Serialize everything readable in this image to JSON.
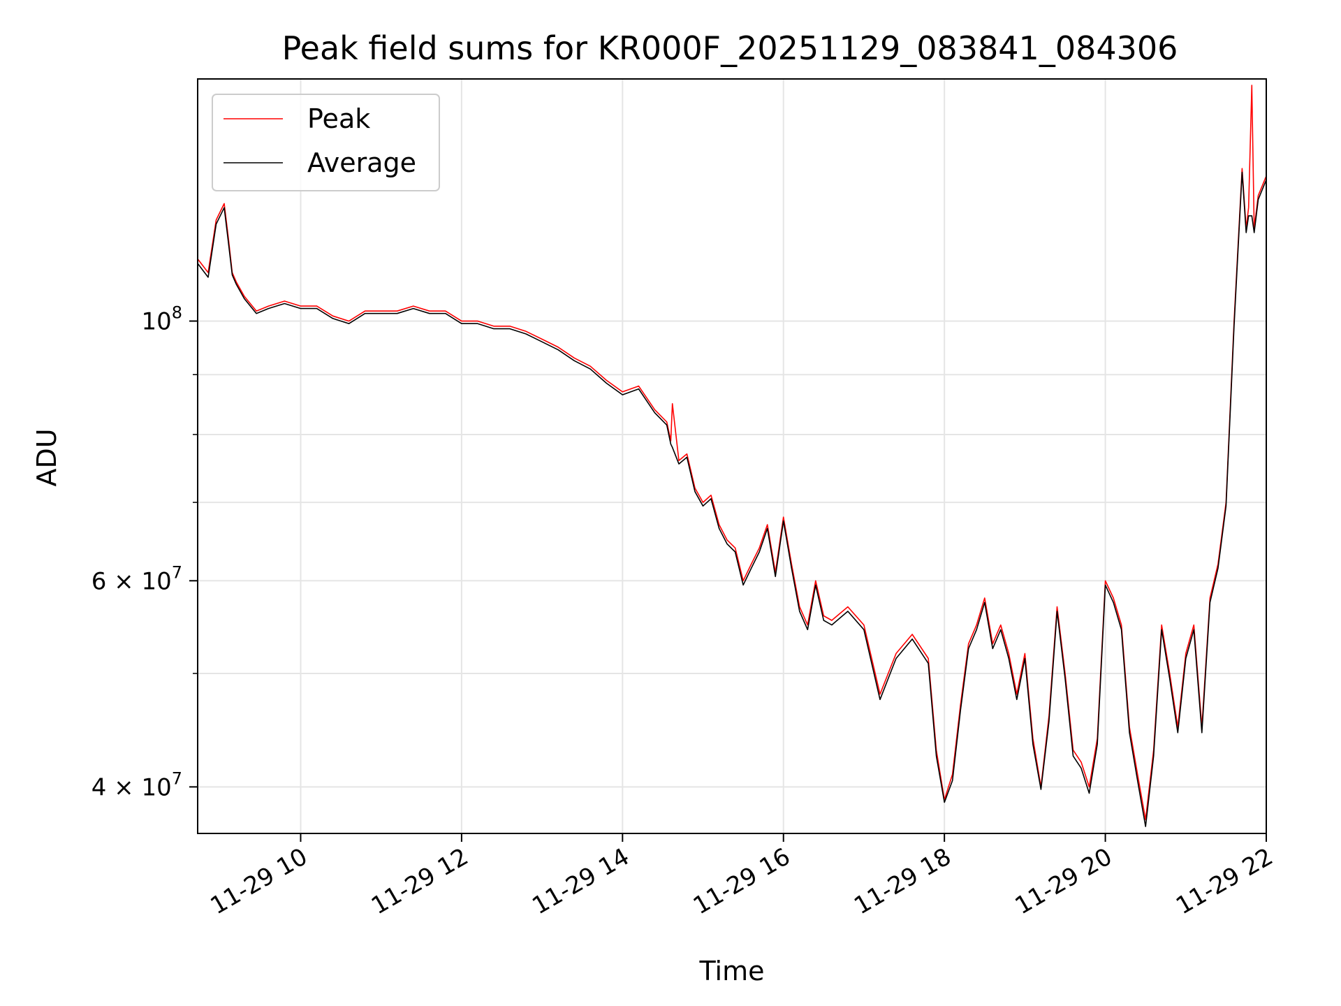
{
  "chart_data": {
    "type": "line",
    "title": "Peak field sums for KR000F_20251129_083841_084306",
    "xlabel": "Time",
    "ylabel": "ADU",
    "yscale": "log",
    "xlim_hours": [
      8.72,
      22.0
    ],
    "ylim": [
      36500000,
      161000000
    ],
    "grid": true,
    "legend_position": "top-left",
    "x_ticks": [
      {
        "value": 10,
        "label": "11-29 10"
      },
      {
        "value": 12,
        "label": "11-29 12"
      },
      {
        "value": 14,
        "label": "11-29 14"
      },
      {
        "value": 16,
        "label": "11-29 16"
      },
      {
        "value": 18,
        "label": "11-29 18"
      },
      {
        "value": 20,
        "label": "11-29 20"
      },
      {
        "value": 22,
        "label": "11-29 22"
      }
    ],
    "y_major_ticks": [
      {
        "value": 100000000,
        "base": "10",
        "exp": "8",
        "mult": ""
      },
      {
        "value": 60000000,
        "base": "10",
        "exp": "7",
        "mult": "6 × "
      },
      {
        "value": 40000000,
        "base": "10",
        "exp": "7",
        "mult": "4 × "
      }
    ],
    "y_minor_ticks": [
      90000000,
      80000000,
      70000000,
      50000000
    ],
    "series": [
      {
        "name": "Peak",
        "color": "#ff0000",
        "x": [
          8.72,
          8.85,
          8.95,
          9.05,
          9.1,
          9.15,
          9.2,
          9.3,
          9.45,
          9.6,
          9.8,
          10.0,
          10.2,
          10.4,
          10.6,
          10.8,
          11.0,
          11.2,
          11.4,
          11.6,
          11.8,
          12.0,
          12.2,
          12.4,
          12.6,
          12.8,
          13.0,
          13.2,
          13.4,
          13.6,
          13.8,
          14.0,
          14.2,
          14.4,
          14.55,
          14.6,
          14.62,
          14.7,
          14.8,
          14.9,
          15.0,
          15.1,
          15.2,
          15.3,
          15.4,
          15.5,
          15.6,
          15.7,
          15.8,
          15.9,
          16.0,
          16.1,
          16.2,
          16.3,
          16.4,
          16.5,
          16.6,
          16.8,
          17.0,
          17.2,
          17.4,
          17.6,
          17.8,
          17.9,
          18.0,
          18.1,
          18.2,
          18.3,
          18.4,
          18.5,
          18.6,
          18.7,
          18.8,
          18.9,
          19.0,
          19.1,
          19.2,
          19.3,
          19.4,
          19.5,
          19.6,
          19.7,
          19.8,
          19.9,
          20.0,
          20.1,
          20.2,
          20.3,
          20.4,
          20.5,
          20.6,
          20.7,
          20.8,
          20.9,
          21.0,
          21.1,
          21.2,
          21.3,
          21.4,
          21.5,
          21.6,
          21.7,
          21.75,
          21.78,
          21.82,
          21.85,
          21.9,
          22.0
        ],
        "values": [
          113000000,
          110000000,
          122000000,
          126000000,
          118000000,
          110000000,
          108000000,
          105000000,
          102000000,
          103000000,
          104000000,
          103000000,
          103000000,
          101000000,
          100000000,
          102000000,
          102000000,
          102000000,
          103000000,
          102000000,
          102000000,
          100000000,
          100000000,
          99000000,
          99000000,
          98000000,
          96500000,
          95000000,
          93000000,
          91500000,
          89000000,
          87000000,
          88000000,
          84000000,
          82000000,
          79000000,
          85000000,
          76000000,
          77000000,
          72000000,
          70000000,
          71000000,
          67000000,
          65000000,
          64000000,
          60000000,
          62000000,
          64000000,
          67000000,
          61000000,
          68000000,
          62000000,
          57000000,
          55000000,
          60000000,
          56000000,
          55500000,
          57000000,
          55000000,
          48000000,
          52000000,
          54000000,
          51500000,
          43000000,
          39000000,
          41000000,
          47000000,
          53000000,
          55000000,
          58000000,
          53000000,
          55000000,
          52000000,
          48000000,
          52000000,
          44000000,
          40000000,
          46000000,
          57000000,
          50000000,
          43000000,
          42000000,
          40000000,
          44000000,
          60000000,
          58000000,
          55000000,
          45000000,
          41000000,
          37500000,
          43000000,
          55000000,
          50000000,
          45000000,
          52000000,
          55000000,
          45000000,
          58000000,
          62000000,
          70000000,
          100000000,
          135000000,
          120000000,
          125000000,
          159000000,
          120000000,
          128000000,
          133000000
        ]
      },
      {
        "name": "Average",
        "color": "#000000",
        "x": [
          8.72,
          8.85,
          8.95,
          9.05,
          9.1,
          9.15,
          9.2,
          9.3,
          9.45,
          9.6,
          9.8,
          10.0,
          10.2,
          10.4,
          10.6,
          10.8,
          11.0,
          11.2,
          11.4,
          11.6,
          11.8,
          12.0,
          12.2,
          12.4,
          12.6,
          12.8,
          13.0,
          13.2,
          13.4,
          13.6,
          13.8,
          14.0,
          14.2,
          14.4,
          14.55,
          14.6,
          14.62,
          14.7,
          14.8,
          14.9,
          15.0,
          15.1,
          15.2,
          15.3,
          15.4,
          15.5,
          15.6,
          15.7,
          15.8,
          15.9,
          16.0,
          16.1,
          16.2,
          16.3,
          16.4,
          16.5,
          16.6,
          16.8,
          17.0,
          17.2,
          17.4,
          17.6,
          17.8,
          17.9,
          18.0,
          18.1,
          18.2,
          18.3,
          18.4,
          18.5,
          18.6,
          18.7,
          18.8,
          18.9,
          19.0,
          19.1,
          19.2,
          19.3,
          19.4,
          19.5,
          19.6,
          19.7,
          19.8,
          19.9,
          20.0,
          20.1,
          20.2,
          20.3,
          20.4,
          20.5,
          20.6,
          20.7,
          20.8,
          20.9,
          21.0,
          21.1,
          21.2,
          21.3,
          21.4,
          21.5,
          21.6,
          21.7,
          21.75,
          21.78,
          21.82,
          21.85,
          21.9,
          22.0
        ],
        "values": [
          112000000,
          109000000,
          121000000,
          125000000,
          117000000,
          109500000,
          107500000,
          104500000,
          101500000,
          102500000,
          103500000,
          102500000,
          102500000,
          100500000,
          99500000,
          101500000,
          101500000,
          101500000,
          102500000,
          101500000,
          101500000,
          99500000,
          99500000,
          98500000,
          98500000,
          97500000,
          96000000,
          94500000,
          92500000,
          91000000,
          88500000,
          86500000,
          87500000,
          83500000,
          81500000,
          78500000,
          78000000,
          75500000,
          76500000,
          71500000,
          69500000,
          70500000,
          66500000,
          64500000,
          63500000,
          59500000,
          61500000,
          63500000,
          66500000,
          60500000,
          67500000,
          61500000,
          56500000,
          54500000,
          59500000,
          55500000,
          55000000,
          56500000,
          54500000,
          47500000,
          51500000,
          53500000,
          51000000,
          42500000,
          38800000,
          40500000,
          46500000,
          52500000,
          54500000,
          57500000,
          52500000,
          54500000,
          51500000,
          47500000,
          51500000,
          43500000,
          39800000,
          45500000,
          56500000,
          49500000,
          42500000,
          41500000,
          39500000,
          43500000,
          59500000,
          57500000,
          54500000,
          44500000,
          40500000,
          37000000,
          42500000,
          54500000,
          49500000,
          44500000,
          51500000,
          54500000,
          44500000,
          57500000,
          61500000,
          69500000,
          99000000,
          134000000,
          119000000,
          123000000,
          123000000,
          119000000,
          127000000,
          132000000
        ]
      }
    ]
  }
}
